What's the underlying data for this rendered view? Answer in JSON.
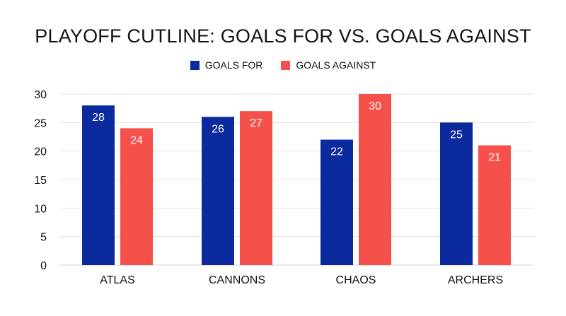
{
  "chart_data": {
    "type": "bar",
    "title": "PLAYOFF CUTLINE: GOALS FOR VS. GOALS AGAINST",
    "categories": [
      "ATLAS",
      "CANNONS",
      "CHAOS",
      "ARCHERS"
    ],
    "series": [
      {
        "name": "GOALS FOR",
        "color": "#0a2a9e",
        "values": [
          28,
          26,
          22,
          25
        ]
      },
      {
        "name": "GOALS AGAINST",
        "color": "#f5504a",
        "values": [
          24,
          27,
          30,
          21
        ]
      }
    ],
    "ylim": [
      0,
      30
    ],
    "yticks": [
      "0",
      "5",
      "10",
      "15",
      "20",
      "25",
      "30"
    ],
    "grid": true,
    "legend_position": "top-center",
    "xlabel": "",
    "ylabel": ""
  }
}
